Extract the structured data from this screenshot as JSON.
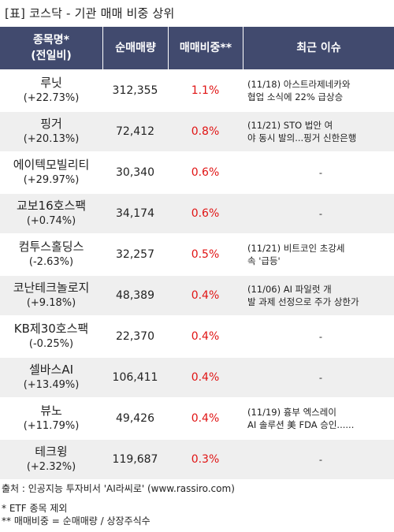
{
  "title": "[표] 코스닥 - 기관 매매 비중 상위",
  "headers": {
    "name_line1": "종목명*",
    "name_line2": "(전일비)",
    "volume": "순매매량",
    "share": "매매비중**",
    "issue": "최근 이슈"
  },
  "rows": [
    {
      "name": "루닛",
      "change": "(+22.73%)",
      "volume": "312,355",
      "share": "1.1%",
      "issue": [
        "(11/18) 아스트라제네카와",
        "협업 소식에 22% 급상승"
      ]
    },
    {
      "name": "핑거",
      "change": "(+20.13%)",
      "volume": "72,412",
      "share": "0.8%",
      "issue": [
        "(11/21) STO 법안 여",
        "야 동시 발의...핑거 신한은행"
      ]
    },
    {
      "name": "에이텍모빌리티",
      "change": "(+29.97%)",
      "volume": "30,340",
      "share": "0.6%",
      "issue": [
        "-"
      ]
    },
    {
      "name": "교보16호스팩",
      "change": "(+0.74%)",
      "volume": "34,174",
      "share": "0.6%",
      "issue": [
        "-"
      ]
    },
    {
      "name": "컴투스홀딩스",
      "change": "(-2.63%)",
      "volume": "32,257",
      "share": "0.5%",
      "issue": [
        "(11/21) 비트코인 초강세",
        "속 '급등'"
      ]
    },
    {
      "name": "코난테크놀로지",
      "change": "(+9.18%)",
      "volume": "48,389",
      "share": "0.4%",
      "issue": [
        "(11/06) AI 파일럿 개",
        "발 과제 선정으로 주가 상한가"
      ]
    },
    {
      "name": "KB제30호스팩",
      "change": "(-0.25%)",
      "volume": "22,370",
      "share": "0.4%",
      "issue": [
        "-"
      ]
    },
    {
      "name": "셀바스AI",
      "change": "(+13.49%)",
      "volume": "106,411",
      "share": "0.4%",
      "issue": [
        "-"
      ]
    },
    {
      "name": "뷰노",
      "change": "(+11.79%)",
      "volume": "49,426",
      "share": "0.4%",
      "issue": [
        "(11/19) 흉부 엑스레이",
        "AI 솔루션 美 FDA 승인......"
      ]
    },
    {
      "name": "테크윙",
      "change": "(+2.32%)",
      "volume": "119,687",
      "share": "0.3%",
      "issue": [
        "-"
      ]
    }
  ],
  "footer": {
    "source": "출처 : 인공지능 투자비서 'AI라씨로' (www.rassiro.com)",
    "note1": "* ETF 종목 제외",
    "note2": "** 매매비중 = 순매매량 / 상장주식수"
  },
  "colors": {
    "header_bg": "#414a6e",
    "share_text": "#e01414",
    "stripe": "#efefef"
  }
}
